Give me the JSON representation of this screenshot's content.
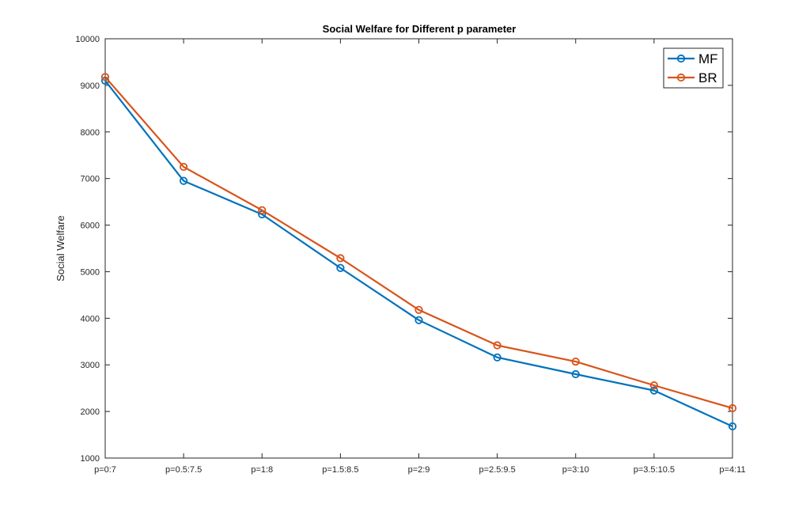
{
  "chart_data": {
    "type": "line",
    "title": "Social Welfare for Different p parameter",
    "xlabel": "",
    "ylabel": "Social Welfare",
    "categories": [
      "p=0:7",
      "p=0.5:7.5",
      "p=1:8",
      "p=1.5:8.5",
      "p=2:9",
      "p=2.5:9.5",
      "p=3:10",
      "p=3.5:10.5",
      "p=4:11"
    ],
    "ylim": [
      1000,
      10000
    ],
    "yticks": [
      1000,
      2000,
      3000,
      4000,
      5000,
      6000,
      7000,
      8000,
      9000,
      10000
    ],
    "grid": false,
    "legend_position": "top-right",
    "series": [
      {
        "name": "MF",
        "color": "#0072BD",
        "marker": "circle",
        "values": [
          9100,
          6950,
          6230,
          5080,
          3960,
          3160,
          2800,
          2450,
          1680
        ]
      },
      {
        "name": "BR",
        "color": "#D95319",
        "marker": "circle",
        "values": [
          9180,
          7250,
          6320,
          5290,
          4180,
          3420,
          3070,
          2560,
          2070
        ]
      }
    ]
  }
}
